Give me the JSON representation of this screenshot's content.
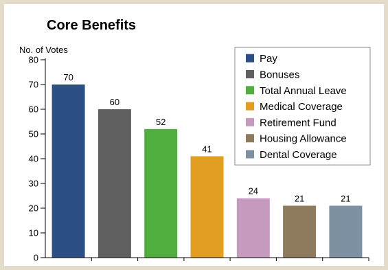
{
  "chart_data": {
    "type": "bar",
    "title": "Core Benefits",
    "ylabel": "No. of Votes",
    "xlabel": "",
    "ylim": [
      0,
      80
    ],
    "yticks": [
      0,
      10,
      20,
      30,
      40,
      50,
      60,
      70,
      80
    ],
    "grid": false,
    "legend_position": "top-right",
    "categories": [
      "Pay",
      "Bonuses",
      "Total Annual Leave",
      "Medical Coverage",
      "Retirement Fund",
      "Housing Allowance",
      "Dental Coverage"
    ],
    "values": [
      70,
      60,
      52,
      41,
      24,
      21,
      21
    ],
    "colors": [
      "#2c4f85",
      "#606060",
      "#4fae3e",
      "#e19e22",
      "#c69abf",
      "#8e7a5d",
      "#7e91a3"
    ]
  }
}
